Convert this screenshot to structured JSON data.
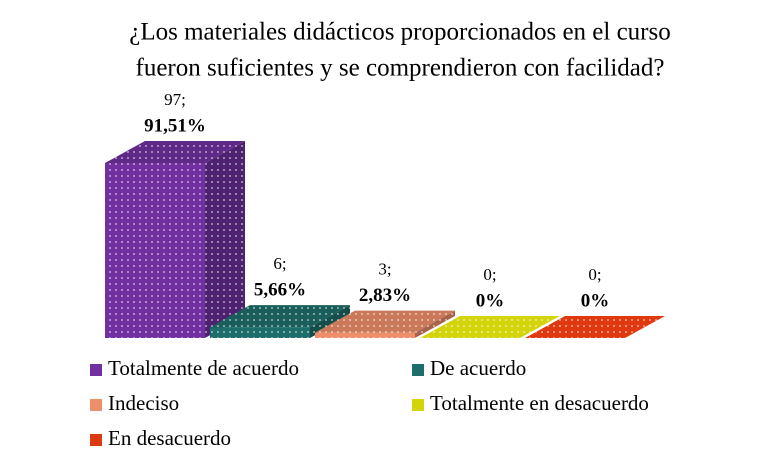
{
  "chart_data": {
    "type": "bar3d",
    "title": [
      "¿Los materiales  didácticos proporcionados en el curso",
      "fueron suficientes  y se comprendieron con facilidad?"
    ],
    "categories": [
      "Totalmente de acuerdo",
      "De acuerdo",
      "Indeciso",
      "Totalmente en desacuerdo",
      "En desacuerdo"
    ],
    "colors": [
      "#7030a0",
      "#1d6e6a",
      "#ee8e6a",
      "#d4d40a",
      "#e0380f"
    ],
    "values": [
      97,
      6,
      3,
      0,
      0
    ],
    "value_labels": [
      "97;",
      "6;",
      "3;",
      "0;",
      "0;"
    ],
    "percentages": [
      91.51,
      5.66,
      2.83,
      0,
      0
    ],
    "percentage_labels": [
      "91,51%",
      "5,66%",
      "2,83%",
      "0%",
      "0%"
    ]
  }
}
